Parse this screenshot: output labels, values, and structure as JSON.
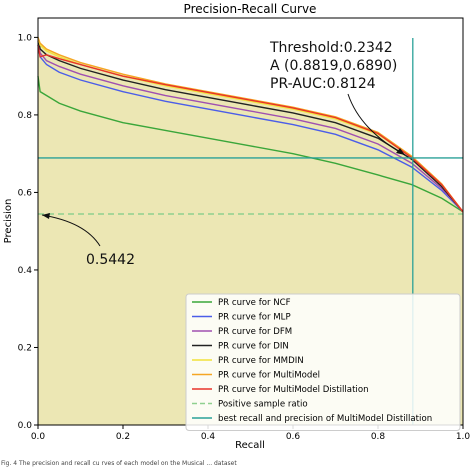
{
  "chart_data": {
    "type": "line",
    "title": "Precision-Recall Curve",
    "xlabel": "Recall",
    "ylabel": "Precision",
    "xlim": [
      0.0,
      1.0
    ],
    "ylim": [
      0.0,
      1.05
    ],
    "xticks": [
      "0.0",
      "0.2",
      "0.4",
      "0.6",
      "0.8",
      "1.0"
    ],
    "yticks": [
      "0.0",
      "0.2",
      "0.4",
      "0.6",
      "0.8",
      "1.0"
    ],
    "grid": false,
    "legend_position": "lower-right",
    "series": [
      {
        "name": "PR curve for NCF",
        "color": "#3aa63a",
        "x": [
          0.0,
          0.005,
          0.02,
          0.05,
          0.1,
          0.2,
          0.3,
          0.4,
          0.5,
          0.6,
          0.7,
          0.8,
          0.88,
          0.95,
          1.0
        ],
        "y": [
          0.9,
          0.86,
          0.85,
          0.83,
          0.81,
          0.78,
          0.76,
          0.74,
          0.72,
          0.7,
          0.675,
          0.645,
          0.62,
          0.585,
          0.55
        ]
      },
      {
        "name": "PR curve for MLP",
        "color": "#4b5de8",
        "x": [
          0.0,
          0.005,
          0.02,
          0.05,
          0.1,
          0.2,
          0.3,
          0.4,
          0.5,
          0.6,
          0.7,
          0.8,
          0.88,
          0.95,
          1.0
        ],
        "y": [
          0.98,
          0.95,
          0.93,
          0.91,
          0.89,
          0.86,
          0.835,
          0.815,
          0.795,
          0.775,
          0.75,
          0.71,
          0.665,
          0.605,
          0.55
        ]
      },
      {
        "name": "PR curve for DFM",
        "color": "#a050b0",
        "x": [
          0.0,
          0.005,
          0.02,
          0.05,
          0.1,
          0.2,
          0.3,
          0.4,
          0.5,
          0.6,
          0.7,
          0.8,
          0.88,
          0.95,
          1.0
        ],
        "y": [
          0.99,
          0.96,
          0.94,
          0.925,
          0.905,
          0.875,
          0.85,
          0.83,
          0.81,
          0.79,
          0.765,
          0.725,
          0.675,
          0.61,
          0.55
        ]
      },
      {
        "name": "PR curve for DIN",
        "color": "#222222",
        "x": [
          0.0,
          0.005,
          0.02,
          0.05,
          0.1,
          0.2,
          0.3,
          0.4,
          0.5,
          0.6,
          0.7,
          0.8,
          0.88,
          0.95,
          1.0
        ],
        "y": [
          1.0,
          0.97,
          0.955,
          0.94,
          0.92,
          0.89,
          0.865,
          0.845,
          0.825,
          0.805,
          0.78,
          0.74,
          0.685,
          0.615,
          0.55
        ]
      },
      {
        "name": "PR curve for MMDIN",
        "color": "#f2e23a",
        "x": [
          0.0,
          0.005,
          0.02,
          0.05,
          0.1,
          0.2,
          0.3,
          0.4,
          0.5,
          0.6,
          0.7,
          0.8,
          0.88,
          0.95,
          1.0
        ],
        "y": [
          1.0,
          0.98,
          0.965,
          0.95,
          0.93,
          0.9,
          0.875,
          0.855,
          0.835,
          0.815,
          0.79,
          0.75,
          0.69,
          0.62,
          0.55
        ]
      },
      {
        "name": "PR curve for MultiModel",
        "color": "#f5a623",
        "x": [
          0.0,
          0.005,
          0.02,
          0.05,
          0.1,
          0.2,
          0.3,
          0.4,
          0.5,
          0.6,
          0.7,
          0.8,
          0.88,
          0.95,
          1.0
        ],
        "y": [
          1.0,
          0.985,
          0.97,
          0.955,
          0.935,
          0.905,
          0.88,
          0.86,
          0.84,
          0.82,
          0.795,
          0.755,
          0.693,
          0.622,
          0.55
        ]
      },
      {
        "name": "PR curve for MultiModel Distillation",
        "color": "#e8332a",
        "x": [
          0.0,
          0.005,
          0.02,
          0.05,
          0.1,
          0.2,
          0.3,
          0.4,
          0.5,
          0.6,
          0.7,
          0.8,
          0.88,
          0.95,
          1.0
        ],
        "y": [
          0.98,
          0.95,
          0.955,
          0.945,
          0.93,
          0.9,
          0.878,
          0.858,
          0.838,
          0.818,
          0.793,
          0.752,
          0.689,
          0.62,
          0.55
        ]
      }
    ],
    "positive_sample_ratio": {
      "name": "Positive sample ratio",
      "value": 0.5442,
      "color": "#8fd08f"
    },
    "best_point": {
      "name": "best recall and precision of MultiModel Distillation",
      "recall": 0.8819,
      "precision": 0.689,
      "color": "#2aa198"
    },
    "fill_color": "#ece7b4",
    "annotations": {
      "threshold": "Threshold:0.2342",
      "point": "A (0.8819,0.6890)",
      "auc": "PR-AUC:0.8124",
      "baseline": "0.5442"
    }
  },
  "caption": "Fig. 4 The precision and recall cu rves of each model on the Musical ... dataset"
}
